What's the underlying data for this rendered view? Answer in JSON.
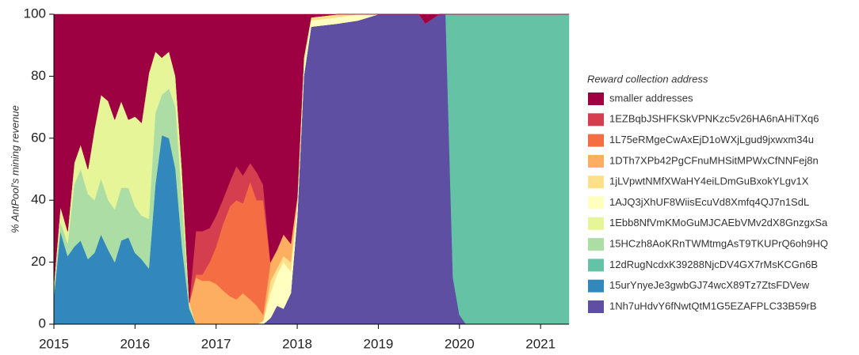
{
  "chart_data": {
    "type": "stacked_area",
    "y_label": "% AntPool's mining revenue",
    "legend_title": "Reward collection address",
    "xlim": [
      2015,
      2021.35
    ],
    "xticks": [
      2015,
      2016,
      2017,
      2018,
      2019,
      2020,
      2021
    ],
    "ylim": [
      0,
      100
    ],
    "yticks": [
      0,
      20,
      40,
      60,
      80,
      100
    ],
    "x": [
      2015.0,
      2015.08,
      2015.17,
      2015.25,
      2015.33,
      2015.42,
      2015.5,
      2015.58,
      2015.67,
      2015.75,
      2015.83,
      2015.92,
      2016.0,
      2016.08,
      2016.17,
      2016.25,
      2016.33,
      2016.42,
      2016.5,
      2016.58,
      2016.67,
      2016.75,
      2016.83,
      2016.92,
      2017.0,
      2017.08,
      2017.17,
      2017.25,
      2017.33,
      2017.42,
      2017.5,
      2017.58,
      2017.67,
      2017.75,
      2017.83,
      2017.92,
      2018.0,
      2018.08,
      2018.17,
      2018.5,
      2018.75,
      2019.0,
      2019.5,
      2019.58,
      2019.75,
      2019.83,
      2019.92,
      2020.0,
      2020.08,
      2021.0,
      2021.35
    ],
    "series": [
      {
        "name": "smaller addresses",
        "color": "#9e0142",
        "values": [
          87,
          62,
          70,
          48,
          42,
          50,
          37,
          26,
          28,
          34,
          28,
          34,
          33,
          35,
          19,
          12,
          14,
          12,
          20,
          50,
          93,
          70,
          70,
          69,
          65,
          60,
          54,
          49,
          52,
          48,
          51,
          55,
          80,
          76,
          71,
          74,
          59,
          14,
          1,
          0,
          0,
          0,
          0,
          3,
          0,
          0,
          0,
          0,
          0,
          0,
          0
        ]
      },
      {
        "name": "1EZBqbJSHFKSkVPNKzc5v26HA6nAHiTXq6",
        "color": "#d53e4f",
        "values": [
          0,
          0,
          0,
          0,
          0,
          0,
          0,
          0,
          0,
          0,
          0,
          0,
          0,
          0,
          0,
          0,
          0,
          0,
          0,
          0,
          0,
          14,
          14,
          11,
          10,
          8,
          8,
          11,
          9,
          6,
          9,
          5,
          0,
          0,
          0,
          0,
          0,
          0,
          0,
          0,
          0,
          0,
          0,
          0,
          0,
          0,
          0,
          0,
          0,
          0,
          0
        ]
      },
      {
        "name": "1L75eRMgeCwAxEjD1oWXjLgud9jxwxm34u",
        "color": "#f46d43",
        "values": [
          0,
          0,
          0,
          0,
          0,
          0,
          0,
          0,
          0,
          0,
          0,
          0,
          0,
          0,
          0,
          0,
          0,
          0,
          0,
          0,
          0,
          1,
          2,
          6,
          12,
          21,
          29,
          32,
          29,
          38,
          34,
          37,
          0,
          0,
          0,
          0,
          0,
          0,
          0,
          0,
          0,
          0,
          0,
          0,
          0,
          0,
          0,
          0,
          0,
          0,
          0
        ]
      },
      {
        "name": "1DTh7XPb42PgCFnuMHSitMPWxCfNNFej8n",
        "color": "#fdae61",
        "values": [
          0,
          0,
          0,
          0,
          0,
          0,
          0,
          0,
          0,
          0,
          0,
          0,
          0,
          0,
          0,
          0,
          0,
          0,
          0,
          0,
          0,
          15,
          14,
          14,
          13,
          11,
          9,
          8,
          10,
          8,
          6,
          2,
          6,
          6,
          7,
          6,
          1,
          0,
          0,
          0,
          0,
          0,
          0,
          0,
          0,
          0,
          0,
          0,
          0,
          0,
          0
        ]
      },
      {
        "name": "1jLVpwtNMfXWaHY4eiLDmGuBxokYLgv1X",
        "color": "#fee08b",
        "values": [
          0,
          0,
          0,
          0,
          0,
          0,
          0,
          0,
          0,
          0,
          0,
          0,
          0,
          0,
          0,
          0,
          0,
          0,
          0,
          0,
          0,
          0,
          0,
          0,
          0,
          0,
          0,
          0,
          0,
          0,
          0,
          0,
          4,
          2,
          2,
          3,
          2,
          2,
          1,
          1,
          0,
          0,
          0,
          0,
          0,
          0,
          0,
          0,
          0,
          0,
          0
        ]
      },
      {
        "name": "1AJQ3jXhUF8WiisEcuVd8Xmfq4QJ7n1SdL",
        "color": "#ffffbf",
        "values": [
          0,
          0,
          0,
          0,
          0,
          0,
          0,
          0,
          0,
          0,
          0,
          0,
          0,
          0,
          0,
          0,
          0,
          0,
          0,
          0,
          0,
          0,
          0,
          0,
          0,
          0,
          0,
          0,
          0,
          0,
          0,
          1,
          8,
          10,
          15,
          7,
          3,
          4,
          2,
          2,
          2,
          0,
          0,
          0,
          0,
          0,
          0,
          0,
          0,
          0,
          0
        ]
      },
      {
        "name": "1Ebb8NfVmKMoGuMJCAEbVMv2dX8GnzgxSa",
        "color": "#e6f598",
        "values": [
          2,
          5,
          4,
          7,
          8,
          8,
          23,
          27,
          32,
          29,
          28,
          22,
          29,
          30,
          47,
          20,
          12,
          12,
          10,
          10,
          1,
          0,
          0,
          0,
          0,
          0,
          0,
          0,
          0,
          0,
          0,
          0,
          0,
          0,
          0,
          0,
          0,
          0,
          0,
          0,
          0,
          0,
          0,
          0,
          0,
          0,
          0,
          0,
          0,
          0,
          0
        ]
      },
      {
        "name": "15HCzh8AoKRnTWMtmgAsT9TKUPrQ6oh9HQ",
        "color": "#abdda4",
        "values": [
          2,
          3,
          4,
          20,
          23,
          21,
          17,
          18,
          16,
          17,
          17,
          16,
          15,
          14,
          16,
          23,
          13,
          16,
          20,
          15,
          1,
          0,
          0,
          0,
          0,
          0,
          0,
          0,
          0,
          0,
          0,
          0,
          0,
          0,
          0,
          0,
          0,
          0,
          0,
          0,
          0,
          0,
          0,
          0,
          0,
          0,
          0,
          0,
          0,
          0,
          0
        ]
      },
      {
        "name": "12dRugNcdxK39288NjcDV4GX7rMsKCGn6B",
        "color": "#66c2a5",
        "values": [
          0,
          0,
          0,
          0,
          0,
          0,
          0,
          0,
          0,
          0,
          0,
          0,
          0,
          0,
          0,
          0,
          0,
          0,
          0,
          0,
          0,
          0,
          0,
          0,
          0,
          0,
          0,
          0,
          0,
          0,
          0,
          0,
          0,
          0,
          0,
          0,
          0,
          0,
          0,
          0,
          0,
          0,
          0,
          0,
          0,
          0,
          85,
          97,
          100,
          100,
          100
        ]
      },
      {
        "name": "15urYnyeJe3gwbGJ74wcX89Tz7ZtsFDVew",
        "color": "#3288bd",
        "values": [
          9,
          30,
          22,
          25,
          27,
          21,
          23,
          29,
          24,
          20,
          27,
          28,
          23,
          21,
          18,
          45,
          61,
          60,
          50,
          25,
          5,
          0,
          0,
          0,
          0,
          0,
          0,
          0,
          0,
          0,
          0,
          0,
          0,
          0,
          0,
          0,
          0,
          0,
          0,
          0,
          0,
          0,
          0,
          0,
          0,
          0,
          0,
          0,
          0,
          0,
          0
        ]
      },
      {
        "name": "1Nh7uHdvY6fNwtQtM1G5EZAFPLC33B59rB",
        "color": "#5e4fa2",
        "values": [
          0,
          0,
          0,
          0,
          0,
          0,
          0,
          0,
          0,
          0,
          0,
          0,
          0,
          0,
          0,
          0,
          0,
          0,
          0,
          0,
          0,
          0,
          0,
          0,
          0,
          0,
          0,
          0,
          0,
          0,
          0,
          0,
          2,
          6,
          5,
          10,
          35,
          80,
          96,
          97,
          98,
          100,
          100,
          97,
          100,
          100,
          15,
          3,
          0,
          0,
          0
        ]
      }
    ]
  }
}
